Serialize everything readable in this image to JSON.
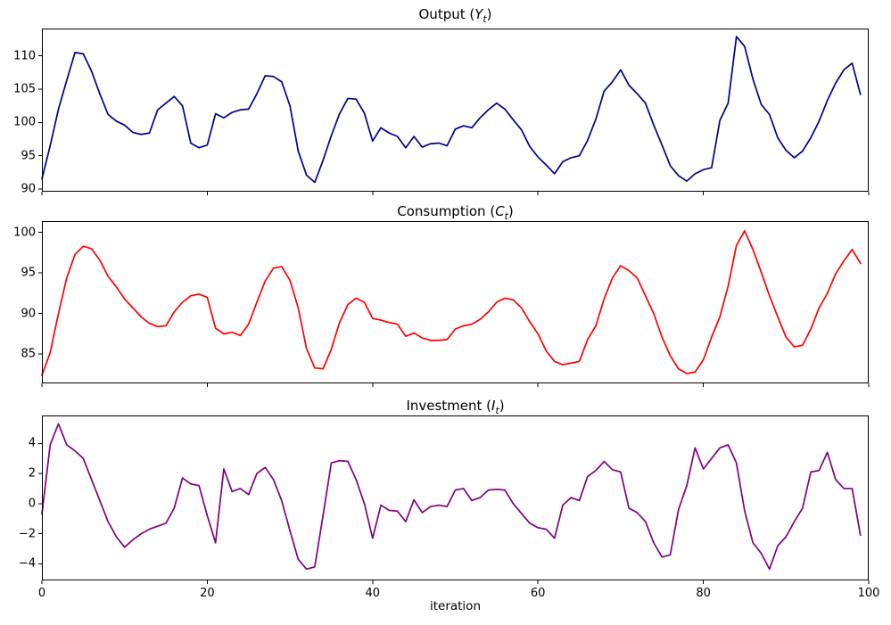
{
  "figure": {
    "xlabel": "iteration",
    "background": "#ffffff",
    "spine_color": "#000000"
  },
  "chart_data": {
    "type": "line",
    "layout": "3 stacked subplots sharing x axis",
    "xlabel": "iteration",
    "xlim": [
      0,
      100
    ],
    "xticks": [
      0,
      20,
      40,
      60,
      80,
      100
    ],
    "xtick_labels": [
      "0",
      "20",
      "40",
      "60",
      "80",
      "100"
    ],
    "n_points": 100,
    "panels": [
      {
        "title": {
          "text": "Output (Y_t)",
          "prefix": "Output (",
          "var": "Y",
          "sub": "t",
          "suffix": ")"
        },
        "color": "#00008b",
        "ylim": [
          89.6,
          114.1
        ],
        "yticks": [
          90,
          95,
          100,
          105,
          110
        ],
        "ytick_labels": [
          "90",
          "95",
          "100",
          "105",
          "110"
        ],
        "values": [
          91.5,
          96.5,
          102.0,
          106.3,
          110.5,
          110.3,
          107.7,
          104.3,
          101.2,
          100.2,
          99.6,
          98.5,
          98.2,
          98.4,
          101.9,
          102.9,
          103.9,
          102.5,
          96.9,
          96.2,
          96.6,
          101.3,
          100.7,
          101.5,
          101.9,
          102.0,
          104.3,
          107.0,
          106.9,
          106.1,
          102.5,
          95.7,
          92.1,
          91.0,
          94.3,
          98.0,
          101.3,
          103.6,
          103.5,
          101.4,
          97.2,
          99.2,
          98.4,
          97.9,
          96.2,
          97.9,
          96.3,
          96.8,
          96.9,
          96.5,
          99.0,
          99.5,
          99.2,
          100.7,
          101.9,
          102.9,
          102.0,
          100.4,
          98.9,
          96.4,
          94.8,
          93.6,
          92.3,
          94.1,
          94.7,
          95.0,
          97.3,
          100.5,
          104.7,
          106.1,
          107.9,
          105.6,
          104.3,
          102.9,
          99.6,
          96.6,
          93.5,
          92.0,
          91.2,
          92.3,
          92.9,
          93.2,
          100.3,
          102.9,
          112.9,
          111.4,
          106.5,
          102.7,
          101.2,
          97.7,
          95.8,
          94.7,
          95.7,
          97.7,
          100.2,
          103.3,
          105.9,
          107.9,
          108.9,
          104.2
        ]
      },
      {
        "title": {
          "text": "Consumption (C_t)",
          "prefix": "Consumption (",
          "var": "C",
          "sub": "t",
          "suffix": ")"
        },
        "color": "#ff0000",
        "ylim": [
          81.4,
          101.4
        ],
        "yticks": [
          85,
          90,
          95,
          100
        ],
        "ytick_labels": [
          "85",
          "90",
          "95",
          "100"
        ],
        "values": [
          82.4,
          85.2,
          90.0,
          94.4,
          97.3,
          98.3,
          98.0,
          96.6,
          94.6,
          93.3,
          91.8,
          90.7,
          89.6,
          88.8,
          88.4,
          88.5,
          90.2,
          91.4,
          92.2,
          92.4,
          92.0,
          88.2,
          87.5,
          87.7,
          87.3,
          88.7,
          91.4,
          94.0,
          95.6,
          95.8,
          94.1,
          90.7,
          85.7,
          83.3,
          83.2,
          85.6,
          88.9,
          91.1,
          91.9,
          91.4,
          89.4,
          89.2,
          88.9,
          88.7,
          87.2,
          87.6,
          87.0,
          86.7,
          86.7,
          86.8,
          88.1,
          88.5,
          88.7,
          89.3,
          90.2,
          91.4,
          91.9,
          91.7,
          90.7,
          89.0,
          87.5,
          85.4,
          84.1,
          83.7,
          83.9,
          84.1,
          86.8,
          88.5,
          91.8,
          94.4,
          95.9,
          95.3,
          94.4,
          92.2,
          90.0,
          87.1,
          84.8,
          83.2,
          82.6,
          82.8,
          84.3,
          87.1,
          89.6,
          93.4,
          98.4,
          100.2,
          97.9,
          95.1,
          92.2,
          89.6,
          87.1,
          85.9,
          86.1,
          88.1,
          90.7,
          92.5,
          94.9,
          96.5,
          97.9,
          96.2
        ]
      },
      {
        "title": {
          "text": "Investment (I_t)",
          "prefix": "Investment (",
          "var": "I",
          "sub": "t",
          "suffix": ")"
        },
        "color": "#800080",
        "ylim": [
          -5.1,
          5.85
        ],
        "yticks": [
          -4,
          -2,
          0,
          2,
          4
        ],
        "ytick_labels": [
          "−4",
          "−2",
          "0",
          "2",
          "4"
        ],
        "values": [
          -0.7,
          3.9,
          5.3,
          3.9,
          3.5,
          3.0,
          1.6,
          0.2,
          -1.2,
          -2.2,
          -2.9,
          -2.4,
          -2.0,
          -1.7,
          -1.5,
          -1.3,
          -0.3,
          1.7,
          1.3,
          1.2,
          -0.8,
          -2.6,
          2.3,
          0.8,
          1.0,
          0.6,
          2.0,
          2.4,
          1.6,
          0.2,
          -1.8,
          -3.7,
          -4.35,
          -4.2,
          -0.8,
          2.7,
          2.85,
          2.8,
          1.6,
          0.0,
          -2.3,
          -0.1,
          -0.45,
          -0.5,
          -1.2,
          0.25,
          -0.6,
          -0.2,
          -0.1,
          -0.2,
          0.9,
          1.0,
          0.2,
          0.4,
          0.9,
          0.95,
          0.9,
          0.0,
          -0.65,
          -1.3,
          -1.6,
          -1.7,
          -2.3,
          -0.1,
          0.4,
          0.2,
          1.8,
          2.2,
          2.8,
          2.25,
          2.1,
          -0.3,
          -0.6,
          -1.2,
          -2.6,
          -3.55,
          -3.4,
          -0.4,
          1.2,
          3.7,
          2.3,
          3.0,
          3.7,
          3.9,
          2.7,
          -0.5,
          -2.6,
          -3.3,
          -4.35,
          -2.8,
          -2.2,
          -1.2,
          -0.3,
          2.1,
          2.2,
          3.4,
          1.6,
          1.0,
          1.0,
          -2.1
        ]
      }
    ]
  }
}
